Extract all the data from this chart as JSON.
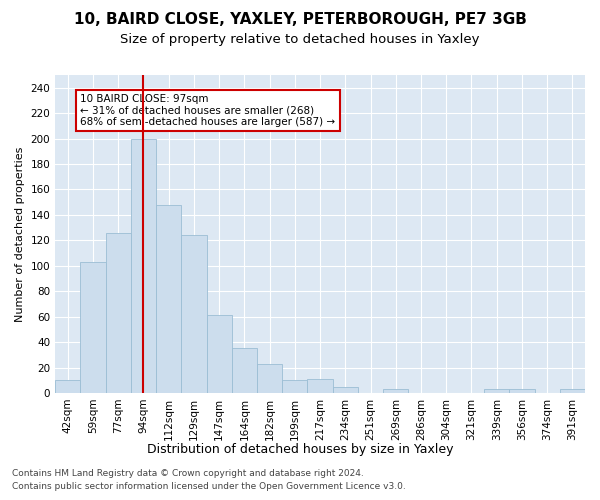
{
  "title1": "10, BAIRD CLOSE, YAXLEY, PETERBOROUGH, PE7 3GB",
  "title2": "Size of property relative to detached houses in Yaxley",
  "xlabel": "Distribution of detached houses by size in Yaxley",
  "ylabel": "Number of detached properties",
  "categories": [
    "42sqm",
    "59sqm",
    "77sqm",
    "94sqm",
    "112sqm",
    "129sqm",
    "147sqm",
    "164sqm",
    "182sqm",
    "199sqm",
    "217sqm",
    "234sqm",
    "251sqm",
    "269sqm",
    "286sqm",
    "304sqm",
    "321sqm",
    "339sqm",
    "356sqm",
    "374sqm",
    "391sqm"
  ],
  "values": [
    10,
    103,
    126,
    200,
    148,
    124,
    61,
    35,
    23,
    10,
    11,
    5,
    0,
    3,
    0,
    0,
    0,
    3,
    3,
    0,
    3
  ],
  "bar_color": "#ccdded",
  "bar_edge_color": "#9bbdd4",
  "property_bar_index": 3,
  "vline_color": "#cc0000",
  "annotation_text": "10 BAIRD CLOSE: 97sqm\n← 31% of detached houses are smaller (268)\n68% of semi-detached houses are larger (587) →",
  "annotation_box_color": "#ffffff",
  "annotation_box_edge_color": "#cc0000",
  "ylim": [
    0,
    250
  ],
  "yticks": [
    0,
    20,
    40,
    60,
    80,
    100,
    120,
    140,
    160,
    180,
    200,
    220,
    240
  ],
  "footer1": "Contains HM Land Registry data © Crown copyright and database right 2024.",
  "footer2": "Contains public sector information licensed under the Open Government Licence v3.0.",
  "plot_bg_color": "#dde8f3",
  "title1_fontsize": 11,
  "title2_fontsize": 9.5,
  "xlabel_fontsize": 9,
  "ylabel_fontsize": 8,
  "tick_fontsize": 7.5,
  "footer_fontsize": 6.5,
  "annot_fontsize": 7.5
}
